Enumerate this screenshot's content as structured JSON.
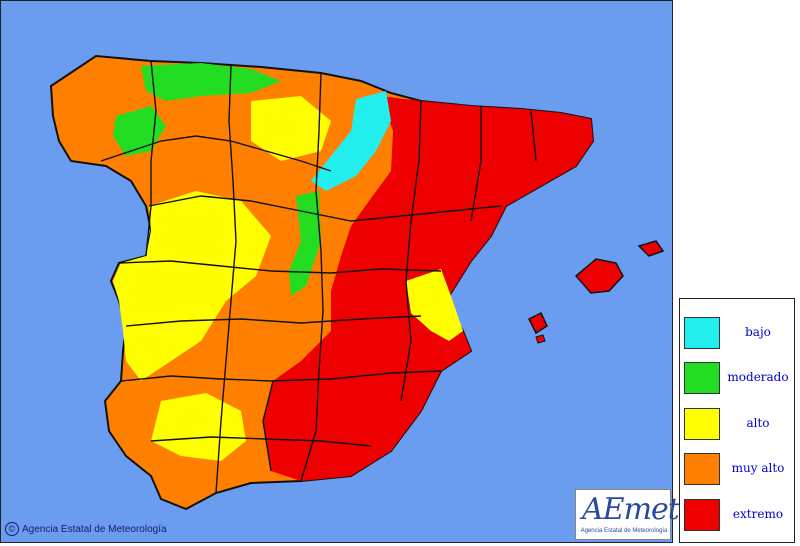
{
  "legend": {
    "items": [
      {
        "label": "bajo",
        "color": "#22eeee"
      },
      {
        "label": "moderado",
        "color": "#22dd22"
      },
      {
        "label": "alto",
        "color": "#ffff00"
      },
      {
        "label": "muy alto",
        "color": "#ff8000"
      },
      {
        "label": "extremo",
        "color": "#ee0000"
      }
    ]
  },
  "credit": {
    "symbol": "©",
    "text": "Agencia Estatal de Meteorología"
  },
  "logo": {
    "wordmark": "AEmet",
    "subtitle": "Agencia Estatal de Meteorología"
  },
  "colors": {
    "sea": "#6a9df0",
    "border": "#111111"
  }
}
